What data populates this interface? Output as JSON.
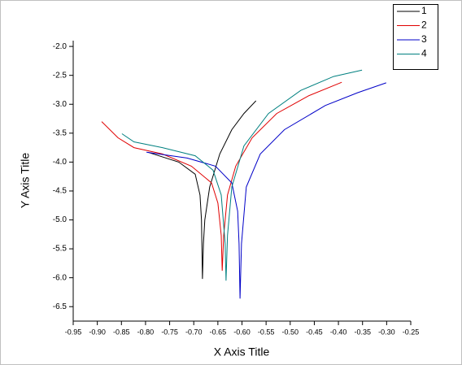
{
  "chart_data": {
    "type": "line",
    "x_label": "X Axis Title",
    "y_label": "Y Axis Title",
    "xlim": [
      -0.95,
      -0.25
    ],
    "ylim": [
      -6.75,
      -1.9
    ],
    "xticks": [
      -0.95,
      {
        "value": -0.9,
        "label": "-0.90"
      },
      -0.85,
      {
        "value": -0.8,
        "label": "-0.80"
      },
      -0.75,
      {
        "value": -0.7,
        "label": "-0.70"
      },
      -0.65,
      {
        "value": -0.6,
        "label": "-0.60"
      },
      -0.55,
      {
        "value": -0.5,
        "label": "-0.50"
      },
      -0.45,
      {
        "value": -0.4,
        "label": "-0.40"
      },
      -0.35,
      {
        "value": -0.3,
        "label": "-0.30"
      },
      -0.25
    ],
    "yticks": [
      {
        "value": -2,
        "label": "-2.0"
      },
      -2.5,
      {
        "value": -3,
        "label": "-3.0"
      },
      -3.5,
      {
        "value": -4,
        "label": "-4.0"
      },
      -4.5,
      {
        "value": -5,
        "label": "-5.0"
      },
      -5.5,
      {
        "value": -6,
        "label": "-6.0"
      },
      -6.5
    ],
    "legend": "top-right",
    "series": [
      {
        "name": "1",
        "color": "#000000",
        "x": [
          -0.795,
          -0.731,
          -0.697,
          -0.687,
          -0.684,
          -0.682,
          -0.68,
          -0.677,
          -0.667,
          -0.646,
          -0.621,
          -0.596,
          -0.571
        ],
        "values": [
          -3.83,
          -4.0,
          -4.21,
          -4.57,
          -5.0,
          -6.02,
          -5.41,
          -5.0,
          -4.43,
          -3.86,
          -3.44,
          -3.16,
          -2.94
        ]
      },
      {
        "name": "2",
        "color": "#e00000",
        "x": [
          -0.891,
          -0.857,
          -0.824,
          -0.765,
          -0.705,
          -0.663,
          -0.65,
          -0.643,
          -0.641,
          -0.638,
          -0.63,
          -0.613,
          -0.579,
          -0.528,
          -0.461,
          -0.393
        ],
        "values": [
          -3.3,
          -3.58,
          -3.75,
          -3.86,
          -4.07,
          -4.36,
          -4.71,
          -5.27,
          -5.88,
          -5.27,
          -4.57,
          -4.07,
          -3.58,
          -3.16,
          -2.85,
          -2.62
        ]
      },
      {
        "name": "3",
        "color": "#0000c8",
        "x": [
          -0.798,
          -0.714,
          -0.655,
          -0.621,
          -0.609,
          -0.606,
          -0.604,
          -0.601,
          -0.591,
          -0.562,
          -0.512,
          -0.427,
          -0.36,
          -0.301
        ],
        "values": [
          -3.83,
          -3.93,
          -4.07,
          -4.36,
          -4.85,
          -5.41,
          -6.36,
          -5.41,
          -4.43,
          -3.86,
          -3.44,
          -3.02,
          -2.8,
          -2.63
        ]
      },
      {
        "name": "4",
        "color": "#008080",
        "x": [
          -0.849,
          -0.824,
          -0.765,
          -0.697,
          -0.66,
          -0.643,
          -0.635,
          -0.633,
          -0.63,
          -0.621,
          -0.596,
          -0.545,
          -0.478,
          -0.41,
          -0.351
        ],
        "values": [
          -3.51,
          -3.65,
          -3.75,
          -3.89,
          -4.14,
          -4.57,
          -5.41,
          -6.05,
          -5.27,
          -4.43,
          -3.72,
          -3.16,
          -2.76,
          -2.52,
          -2.41
        ]
      }
    ]
  }
}
